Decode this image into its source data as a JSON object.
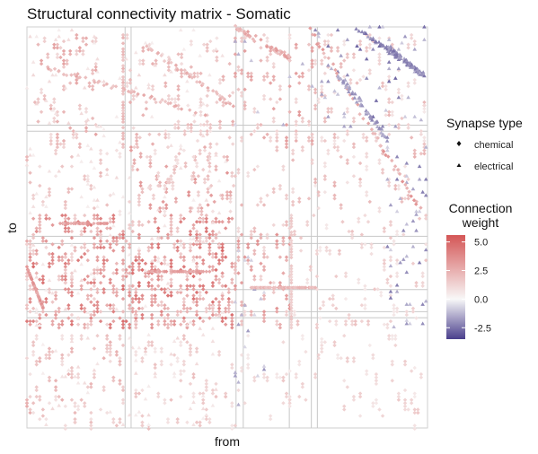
{
  "chart_data": {
    "type": "heatmap",
    "title": "Structural connectivity matrix - Somatic",
    "xlabel": "from",
    "ylabel": "to",
    "grid": true,
    "legend_placement": "right",
    "shape_legend": {
      "title": "Synapse type",
      "entries": [
        {
          "label": "chemical",
          "shape": "diamond"
        },
        {
          "label": "electrical",
          "shape": "triangle"
        }
      ]
    },
    "color_legend": {
      "title_line1": "Connection",
      "title_line2": "weight",
      "range": [
        -3.5,
        5.6
      ],
      "ticks": [
        {
          "value": 5.0,
          "label": "5.0"
        },
        {
          "value": 2.5,
          "label": "2.5"
        },
        {
          "value": 0.0,
          "label": "0.0"
        },
        {
          "value": -2.5,
          "label": "-2.5"
        }
      ],
      "colors": {
        "low": "#4a3f8c",
        "mid": "#f8f8f8",
        "high": "#d45656"
      }
    },
    "group_boundaries": [
      0.245,
      0.26,
      0.522,
      0.54,
      0.655,
      0.71,
      0.725
    ],
    "clusters": [
      {
        "from": [
          0.02,
          0.18
        ],
        "to": [
          0.02,
          0.3
        ],
        "weight": 2.4,
        "density": 0.1,
        "type": "chemical"
      },
      {
        "from": [
          0.25,
          0.52
        ],
        "to": [
          0.02,
          0.3
        ],
        "weight": 2.0,
        "density": 0.09,
        "type": "chemical"
      },
      {
        "from": [
          0.26,
          0.52
        ],
        "to": [
          0.3,
          0.47
        ],
        "weight": 2.8,
        "density": 0.08,
        "type": "chemical"
      },
      {
        "from": [
          0.0,
          0.24
        ],
        "to": [
          0.47,
          0.75
        ],
        "weight": 3.5,
        "density": 0.2,
        "type": "chemical"
      },
      {
        "from": [
          0.24,
          0.52
        ],
        "to": [
          0.47,
          0.75
        ],
        "weight": 3.8,
        "density": 0.22,
        "type": "chemical"
      },
      {
        "from": [
          0.52,
          0.66
        ],
        "to": [
          0.47,
          0.75
        ],
        "weight": 2.8,
        "density": 0.12,
        "type": "chemical"
      },
      {
        "from": [
          0.66,
          1.0
        ],
        "to": [
          0.47,
          0.75
        ],
        "weight": 1.5,
        "density": 0.06,
        "type": "chemical"
      },
      {
        "from": [
          0.0,
          0.24
        ],
        "to": [
          0.77,
          1.0
        ],
        "weight": 2.0,
        "density": 0.1,
        "type": "chemical"
      },
      {
        "from": [
          0.24,
          0.52
        ],
        "to": [
          0.77,
          1.0
        ],
        "weight": 1.6,
        "density": 0.07,
        "type": "chemical"
      },
      {
        "from": [
          0.52,
          1.0
        ],
        "to": [
          0.77,
          1.0
        ],
        "weight": 1.3,
        "density": 0.04,
        "type": "chemical"
      },
      {
        "from": [
          0.52,
          0.72
        ],
        "to": [
          0.02,
          0.3
        ],
        "weight": 2.5,
        "density": 0.09,
        "type": "chemical"
      },
      {
        "from": [
          0.72,
          1.0
        ],
        "to": [
          0.02,
          0.4
        ],
        "weight": 1.8,
        "density": 0.06,
        "type": "chemical"
      },
      {
        "from": [
          0.0,
          1.0
        ],
        "to": [
          0.3,
          0.47
        ],
        "weight": 1.8,
        "density": 0.04,
        "type": "chemical"
      },
      {
        "from": [
          0.52,
          0.75
        ],
        "to": [
          0.02,
          0.25
        ],
        "weight": -1.5,
        "density": 0.03,
        "type": "electrical"
      },
      {
        "from": [
          0.72,
          1.0
        ],
        "to": [
          0.0,
          0.25
        ],
        "weight": -2.3,
        "density": 0.05,
        "type": "electrical"
      },
      {
        "from": [
          0.9,
          1.0
        ],
        "to": [
          0.3,
          0.75
        ],
        "weight": -2.0,
        "density": 0.06,
        "type": "electrical"
      },
      {
        "from": [
          0.52,
          0.6
        ],
        "to": [
          0.55,
          0.95
        ],
        "weight": -1.5,
        "density": 0.04,
        "type": "electrical"
      },
      {
        "from": [
          0.0,
          0.5
        ],
        "to": [
          0.0,
          1.0
        ],
        "weight": 0.9,
        "density": 0.03,
        "type": "electrical"
      }
    ],
    "diagonal_bands": [
      {
        "from": [
          0.52,
          0.66
        ],
        "to": [
          0.0,
          0.08
        ],
        "weight": 3.0
      },
      {
        "from": [
          0.7,
          0.98
        ],
        "to": [
          0.0,
          0.45
        ],
        "weight": 3.2
      },
      {
        "from": [
          0.82,
          0.99
        ],
        "to": [
          0.0,
          0.12
        ],
        "weight": -2.6
      },
      {
        "from": [
          0.9,
          0.99
        ],
        "to": [
          0.05,
          0.12
        ],
        "weight": -2.4
      },
      {
        "from": [
          0.78,
          0.9
        ],
        "to": [
          0.12,
          0.28
        ],
        "weight": -2.0
      },
      {
        "from": [
          0.05,
          0.45
        ],
        "to": [
          0.1,
          0.22
        ],
        "weight": 2.6
      },
      {
        "from": [
          0.3,
          0.52
        ],
        "to": [
          0.05,
          0.2
        ],
        "weight": 2.4
      }
    ],
    "line_segments": [
      {
        "from": [
          0.08,
          0.2
        ],
        "to": [
          0.49,
          0.49
        ],
        "weight": 3.2
      },
      {
        "from": [
          0.3,
          0.46
        ],
        "to": [
          0.61,
          0.61
        ],
        "weight": 3.2
      },
      {
        "from": [
          0.56,
          0.72
        ],
        "to": [
          0.65,
          0.65
        ],
        "weight": 2.4
      },
      {
        "from": [
          0.0,
          0.04
        ],
        "to": [
          0.6,
          0.7
        ],
        "weight": 3.5
      },
      {
        "from": [
          0.24,
          0.24
        ],
        "to": [
          0.02,
          0.3
        ],
        "weight": 2.2
      },
      {
        "from": [
          0.66,
          0.66
        ],
        "to": [
          0.47,
          0.75
        ],
        "weight": 1.6
      }
    ]
  }
}
